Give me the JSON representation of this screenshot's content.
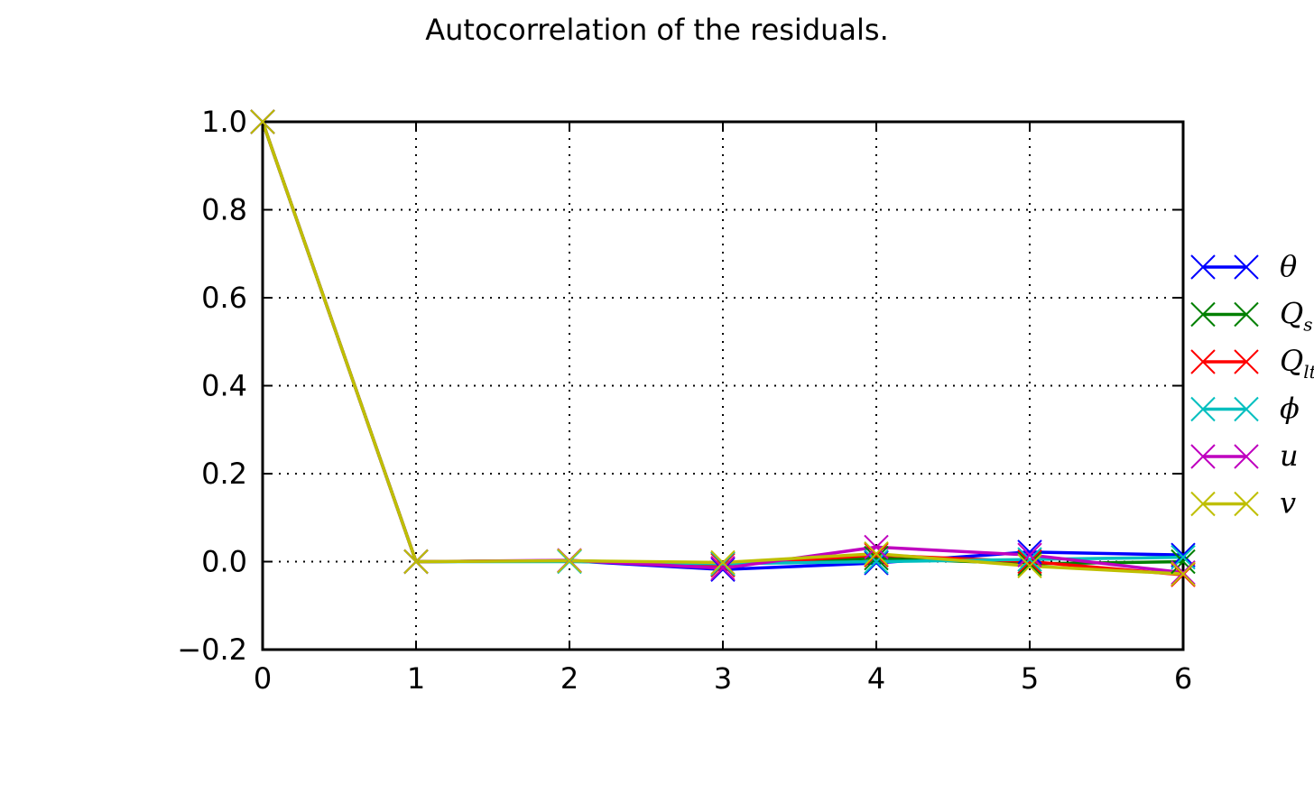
{
  "chart_data": {
    "type": "line",
    "title": "Autocorrelation of the residuals.",
    "xlabel": "",
    "ylabel": "",
    "xlim": [
      0,
      6
    ],
    "ylim": [
      -0.2,
      1.0
    ],
    "x_ticks": [
      "0",
      "1",
      "2",
      "3",
      "4",
      "5",
      "6"
    ],
    "y_ticks": [
      "1.0",
      "0.8",
      "0.6",
      "0.4",
      "0.2",
      "0.0",
      "−0.2"
    ],
    "grid": true,
    "legend_placement": "right, outside the plot area",
    "x": [
      0,
      1,
      2,
      3,
      4,
      5,
      6
    ],
    "series": [
      {
        "name": "θ",
        "color": "#0000ff",
        "marker": "x",
        "values": [
          1.0,
          0.0,
          0.002,
          -0.018,
          -0.003,
          0.022,
          0.015
        ]
      },
      {
        "name": "Q",
        "subscript": "s",
        "color": "#008000",
        "marker": "x",
        "values": [
          1.0,
          0.0,
          0.002,
          -0.005,
          0.008,
          -0.005,
          0.0
        ]
      },
      {
        "name": "Q",
        "subscript": "lt",
        "color": "#ff0000",
        "marker": "x",
        "values": [
          1.0,
          0.0,
          0.002,
          -0.008,
          0.015,
          0.0,
          -0.03
        ]
      },
      {
        "name": "ϕ",
        "color": "#00bfbf",
        "marker": "x",
        "values": [
          1.0,
          0.0,
          0.0,
          -0.005,
          0.0,
          0.005,
          0.01
        ]
      },
      {
        "name": "u",
        "color": "#bf00bf",
        "marker": "x",
        "values": [
          1.0,
          0.0,
          0.003,
          -0.015,
          0.033,
          0.015,
          -0.025
        ]
      },
      {
        "name": "v",
        "color": "#bfbf00",
        "marker": "x",
        "values": [
          1.0,
          0.0,
          0.002,
          -0.002,
          0.018,
          -0.01,
          -0.028
        ]
      }
    ]
  }
}
